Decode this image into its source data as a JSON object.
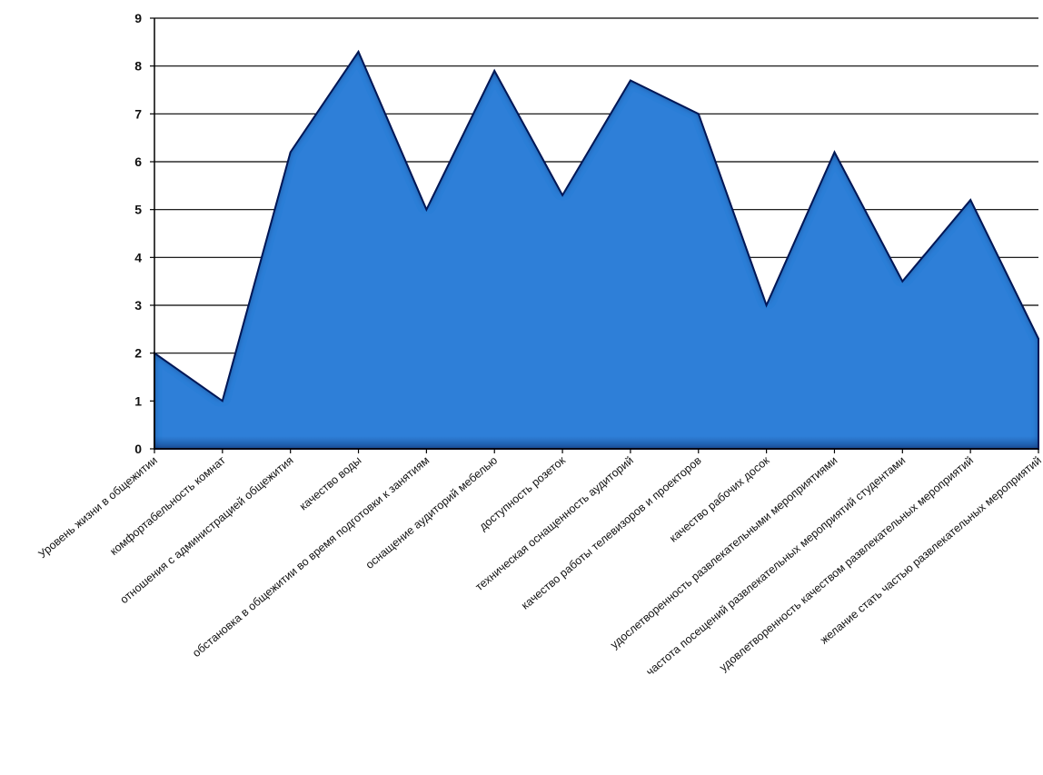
{
  "chart_data": {
    "type": "area",
    "title": "",
    "xlabel": "",
    "ylabel": "",
    "ylim": [
      0,
      9
    ],
    "yticks": [
      0,
      1,
      2,
      3,
      4,
      5,
      6,
      7,
      8,
      9
    ],
    "grid": true,
    "legend": "none",
    "colors": {
      "fill": "#2f7fd8",
      "edge": "#0a1f5c",
      "grid": "#000000"
    },
    "categories": [
      "Уровень жизни в общежитии",
      "комфортабельность комнат",
      "отношения с администрацией общежития",
      "качество воды",
      "обстановка в общежитии во время подготовки к занятиям",
      "оснащение аудиторий мебелью",
      "доступность розеток",
      "техническая оснащенность аудиторий",
      "качество работы телевизоров и проекторов",
      "качество рабочих досок",
      "удослетворенность развлекательными мероприятиями",
      "частота посещений развлекательных мероприятий студентами",
      "удовлетворенность качеством развлекательных мероприятий",
      "желание стать частью развлекательных мероприятий"
    ],
    "values": [
      2.0,
      1.0,
      6.2,
      8.3,
      5.0,
      7.9,
      5.3,
      7.7,
      7.0,
      3.0,
      6.2,
      3.5,
      5.2,
      2.3
    ]
  }
}
